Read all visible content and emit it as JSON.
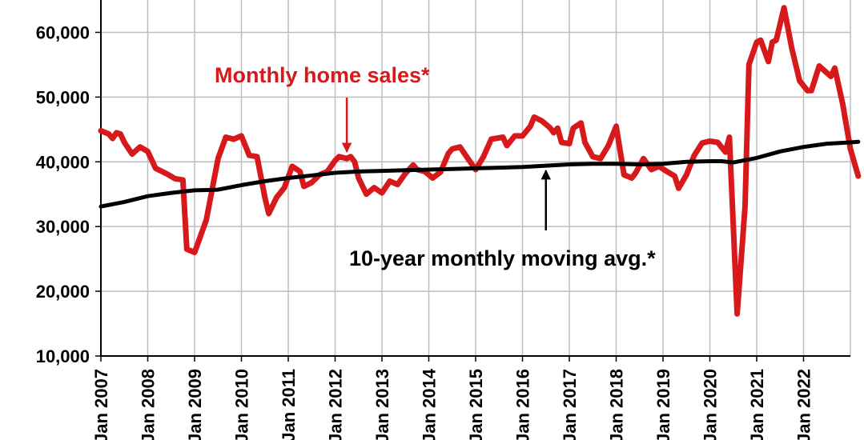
{
  "chart_data": {
    "type": "line",
    "title": "",
    "xlabel": "",
    "ylabel": "",
    "ylim": [
      10000,
      65000
    ],
    "xlim": [
      "2007-01",
      "2023-01"
    ],
    "grid": "both",
    "legend": "none",
    "y_ticks": [
      {
        "value": 10000,
        "label": "10,000"
      },
      {
        "value": 20000,
        "label": "20,000"
      },
      {
        "value": 30000,
        "label": "30,000"
      },
      {
        "value": 40000,
        "label": "40,000"
      },
      {
        "value": 50000,
        "label": "50,000"
      },
      {
        "value": 60000,
        "label": "60,000"
      }
    ],
    "x_ticks": [
      {
        "value": "2007-01",
        "label": "Jan 2007"
      },
      {
        "value": "2008-01",
        "label": "Jan 2008"
      },
      {
        "value": "2009-01",
        "label": "Jan 2009"
      },
      {
        "value": "2010-01",
        "label": "Jan 2010"
      },
      {
        "value": "2011-01",
        "label": "Jan 2011"
      },
      {
        "value": "2012-01",
        "label": "Jan 2012"
      },
      {
        "value": "2013-01",
        "label": "Jan 2013"
      },
      {
        "value": "2014-01",
        "label": "Jan 2014"
      },
      {
        "value": "2015-01",
        "label": "Jan 2015"
      },
      {
        "value": "2016-01",
        "label": "Jan 2016"
      },
      {
        "value": "2017-01",
        "label": "Jan 2017"
      },
      {
        "value": "2018-01",
        "label": "Jan 2018"
      },
      {
        "value": "2019-01",
        "label": "Jan 2019"
      },
      {
        "value": "2020-01",
        "label": "Jan 2020"
      },
      {
        "value": "2021-01",
        "label": "Jan 2021"
      },
      {
        "value": "2022-01",
        "label": "Jan 2022"
      }
    ],
    "series": [
      {
        "name": "Monthly home sales*",
        "color": "#d7191c",
        "points": [
          [
            "2007-01",
            44800
          ],
          [
            "2007-03",
            44300
          ],
          [
            "2007-04",
            43600
          ],
          [
            "2007-05",
            44500
          ],
          [
            "2007-06",
            44300
          ],
          [
            "2007-07",
            43000
          ],
          [
            "2007-09",
            41200
          ],
          [
            "2007-11",
            42300
          ],
          [
            "2008-01",
            41600
          ],
          [
            "2008-03",
            39000
          ],
          [
            "2008-06",
            38100
          ],
          [
            "2008-08",
            37400
          ],
          [
            "2008-10",
            37200
          ],
          [
            "2008-11",
            26500
          ],
          [
            "2009-01",
            26000
          ],
          [
            "2009-04",
            31000
          ],
          [
            "2009-07",
            40500
          ],
          [
            "2009-09",
            43800
          ],
          [
            "2009-11",
            43500
          ],
          [
            "2010-01",
            44000
          ],
          [
            "2010-03",
            41000
          ],
          [
            "2010-05",
            40800
          ],
          [
            "2010-07",
            34500
          ],
          [
            "2010-08",
            32000
          ],
          [
            "2010-10",
            34500
          ],
          [
            "2010-12",
            36000
          ],
          [
            "2011-02",
            39300
          ],
          [
            "2011-04",
            38500
          ],
          [
            "2011-05",
            36200
          ],
          [
            "2011-07",
            36800
          ],
          [
            "2011-09",
            38000
          ],
          [
            "2011-11",
            38500
          ],
          [
            "2012-01",
            40200
          ],
          [
            "2012-02",
            40800
          ],
          [
            "2012-04",
            40500
          ],
          [
            "2012-05",
            40800
          ],
          [
            "2012-06",
            40000
          ],
          [
            "2012-07",
            37500
          ],
          [
            "2012-09",
            35000
          ],
          [
            "2012-11",
            36000
          ],
          [
            "2013-01",
            35200
          ],
          [
            "2013-03",
            37000
          ],
          [
            "2013-05",
            36500
          ],
          [
            "2013-07",
            38200
          ],
          [
            "2013-09",
            39500
          ],
          [
            "2013-10",
            38800
          ],
          [
            "2013-12",
            38500
          ],
          [
            "2014-02",
            37500
          ],
          [
            "2014-04",
            38400
          ],
          [
            "2014-06",
            41300
          ],
          [
            "2014-07",
            42000
          ],
          [
            "2014-09",
            42300
          ],
          [
            "2014-11",
            40500
          ],
          [
            "2015-01",
            38800
          ],
          [
            "2015-03",
            40800
          ],
          [
            "2015-05",
            43500
          ],
          [
            "2015-08",
            43800
          ],
          [
            "2015-09",
            42500
          ],
          [
            "2015-11",
            44000
          ],
          [
            "2016-01",
            44000
          ],
          [
            "2016-03",
            45500
          ],
          [
            "2016-04",
            46900
          ],
          [
            "2016-06",
            46300
          ],
          [
            "2016-08",
            45300
          ],
          [
            "2016-09",
            44500
          ],
          [
            "2016-10",
            45200
          ],
          [
            "2016-11",
            43000
          ],
          [
            "2017-01",
            42800
          ],
          [
            "2017-02",
            45200
          ],
          [
            "2017-04",
            46000
          ],
          [
            "2017-05",
            43000
          ],
          [
            "2017-07",
            40800
          ],
          [
            "2017-09",
            40500
          ],
          [
            "2017-11",
            42500
          ],
          [
            "2018-01",
            45500
          ],
          [
            "2018-03",
            38000
          ],
          [
            "2018-05",
            37500
          ],
          [
            "2018-06",
            38300
          ],
          [
            "2018-08",
            40500
          ],
          [
            "2018-10",
            38800
          ],
          [
            "2018-12",
            39300
          ],
          [
            "2019-02",
            38500
          ],
          [
            "2019-04",
            37800
          ],
          [
            "2019-05",
            35900
          ],
          [
            "2019-07",
            38000
          ],
          [
            "2019-09",
            41000
          ],
          [
            "2019-11",
            42900
          ],
          [
            "2020-01",
            43200
          ],
          [
            "2020-03",
            43000
          ],
          [
            "2020-05",
            41500
          ],
          [
            "2020-06",
            43800
          ],
          [
            "2020-08",
            16500
          ],
          [
            "2020-10",
            33000
          ],
          [
            "2020-11",
            55000
          ],
          [
            "2021-01",
            58500
          ],
          [
            "2021-02",
            58800
          ],
          [
            "2021-04",
            55500
          ],
          [
            "2021-05",
            58500
          ],
          [
            "2021-06",
            58800
          ],
          [
            "2021-08",
            63800
          ],
          [
            "2021-10",
            57500
          ],
          [
            "2021-12",
            52500
          ],
          [
            "2022-02",
            51000
          ],
          [
            "2022-03",
            51000
          ],
          [
            "2022-05",
            54800
          ],
          [
            "2022-08",
            53200
          ],
          [
            "2022-09",
            54500
          ],
          [
            "2022-11",
            49000
          ],
          [
            "2023-01",
            42000
          ],
          [
            "2023-03",
            37800
          ]
        ]
      },
      {
        "name": "10-year monthly moving avg.*",
        "color": "#000000",
        "points": [
          [
            "2007-01",
            33100
          ],
          [
            "2007-07",
            33800
          ],
          [
            "2008-01",
            34700
          ],
          [
            "2008-07",
            35200
          ],
          [
            "2009-01",
            35600
          ],
          [
            "2009-07",
            35700
          ],
          [
            "2010-01",
            36400
          ],
          [
            "2010-07",
            37000
          ],
          [
            "2011-01",
            37500
          ],
          [
            "2011-07",
            37900
          ],
          [
            "2012-01",
            38300
          ],
          [
            "2012-07",
            38500
          ],
          [
            "2013-01",
            38600
          ],
          [
            "2013-07",
            38700
          ],
          [
            "2014-01",
            38800
          ],
          [
            "2014-07",
            38900
          ],
          [
            "2015-01",
            39000
          ],
          [
            "2015-07",
            39100
          ],
          [
            "2016-01",
            39200
          ],
          [
            "2016-07",
            39400
          ],
          [
            "2017-01",
            39600
          ],
          [
            "2017-07",
            39700
          ],
          [
            "2018-01",
            39700
          ],
          [
            "2018-07",
            39600
          ],
          [
            "2019-01",
            39700
          ],
          [
            "2019-07",
            40000
          ],
          [
            "2020-01",
            40100
          ],
          [
            "2020-04",
            40100
          ],
          [
            "2020-07",
            39900
          ],
          [
            "2021-01",
            40600
          ],
          [
            "2021-07",
            41600
          ],
          [
            "2022-01",
            42300
          ],
          [
            "2022-07",
            42800
          ],
          [
            "2023-01",
            43000
          ],
          [
            "2023-03",
            43100
          ]
        ]
      }
    ],
    "annotations": [
      {
        "text": "Monthly home sales*",
        "color": "#d7191c",
        "target_x": "2012-04",
        "target_y": 40800
      },
      {
        "text": "10-year monthly moving avg.*",
        "color": "#000000",
        "target_x": "2016-07",
        "target_y": 39400
      }
    ]
  }
}
